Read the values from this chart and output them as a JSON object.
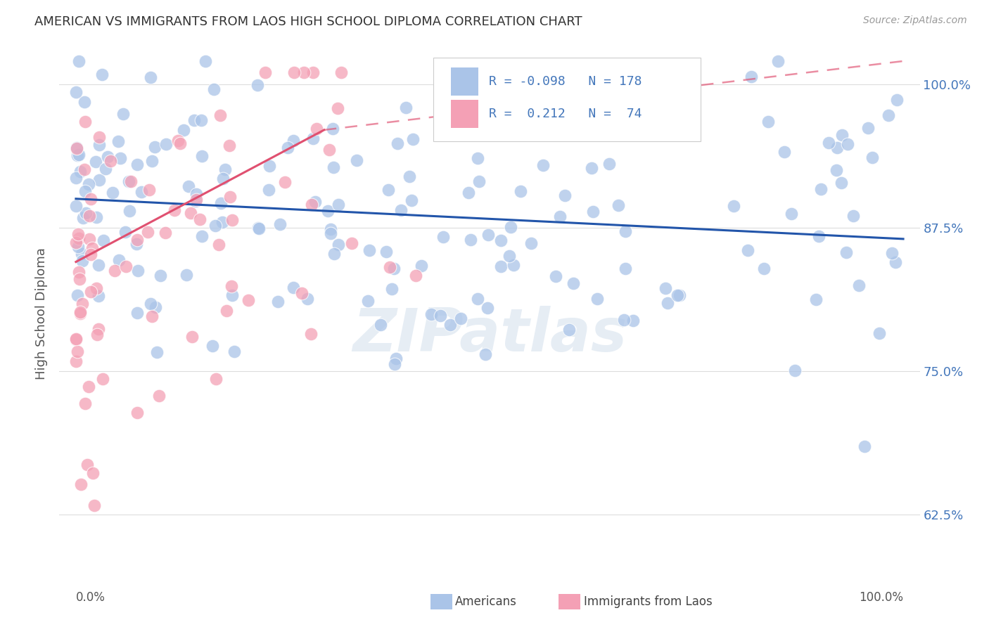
{
  "title": "AMERICAN VS IMMIGRANTS FROM LAOS HIGH SCHOOL DIPLOMA CORRELATION CHART",
  "source": "Source: ZipAtlas.com",
  "ylabel": "High School Diploma",
  "watermark": "ZIPatlas",
  "blue_R": -0.098,
  "blue_N": 178,
  "pink_R": 0.212,
  "pink_N": 74,
  "blue_color": "#aac4e8",
  "pink_color": "#f4a0b5",
  "blue_line_color": "#2255aa",
  "pink_line_color": "#e05070",
  "background_color": "#ffffff",
  "grid_color": "#dddddd",
  "right_label_color": "#4477bb",
  "title_color": "#333333",
  "yticks": [
    0.625,
    0.75,
    0.875,
    1.0
  ],
  "ytick_labels": [
    "62.5%",
    "75.0%",
    "87.5%",
    "100.0%"
  ],
  "ymin": 0.565,
  "ymax": 1.035,
  "xmin": -0.02,
  "xmax": 1.02,
  "blue_trend": [
    0.0,
    1.0,
    0.9,
    0.865
  ],
  "pink_solid_trend": [
    0.0,
    0.3,
    0.845,
    0.96
  ],
  "pink_dash_trend": [
    0.3,
    1.0,
    0.96,
    1.02
  ]
}
